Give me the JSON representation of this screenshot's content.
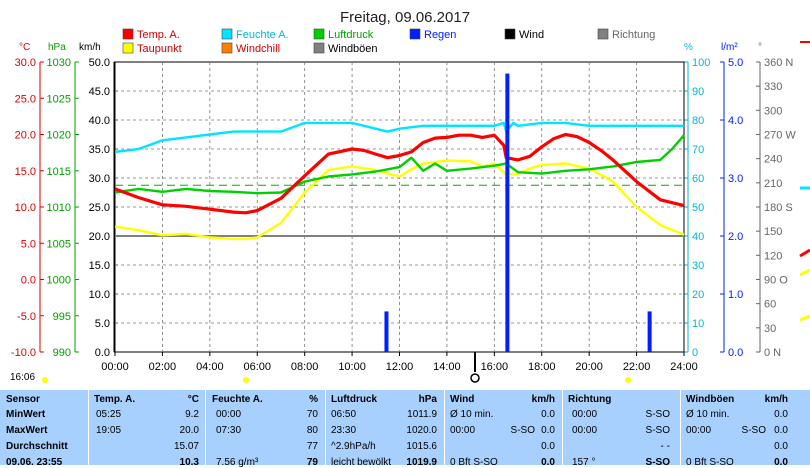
{
  "title": "Freitag, 09.06.2017",
  "axis_units": {
    "temp": "°C",
    "pressure": "hPa",
    "wind": "km/h",
    "humidity": "%",
    "rain": "l/m²",
    "direction": "°"
  },
  "legend": [
    {
      "label": "Temp. A.",
      "color": "#ff0000"
    },
    {
      "label": "Feuchte A.",
      "color": "#00e5ff"
    },
    {
      "label": "Luftdruck",
      "color": "#00d000"
    },
    {
      "label": "Regen",
      "color": "#0020ff"
    },
    {
      "label": "Wind",
      "color": "#000000"
    },
    {
      "label": "Richtung",
      "color": "#808080"
    },
    {
      "label": "Taupunkt",
      "color": "#ffff00"
    },
    {
      "label": "Windchill",
      "color": "#ff8000"
    },
    {
      "label": "Windböen",
      "color": "#808080"
    }
  ],
  "timestamp": "16:06",
  "chart_data": {
    "type": "line",
    "title": "Freitag, 09.06.2017",
    "x_ticks": [
      "00:00",
      "02:00",
      "04:00",
      "06:00",
      "08:00",
      "10:00",
      "12:00",
      "14:00",
      "16:00",
      "18:00",
      "20:00",
      "22:00",
      "24:00"
    ],
    "xlim": [
      0,
      24
    ],
    "y_axes": {
      "temp": {
        "ticks": [
          "30.0",
          "25.0",
          "20.0",
          "15.0",
          "10.0",
          "5.0",
          "0.0",
          "-5.0",
          "-10.0"
        ],
        "ylim": [
          -10,
          30
        ]
      },
      "pressure": {
        "ticks": [
          "1030",
          "1025",
          "1020",
          "1015",
          "1010",
          "1005",
          "1000",
          "995",
          "990"
        ],
        "ylim": [
          990,
          1030
        ]
      },
      "wind": {
        "ticks": [
          "50.0",
          "45.0",
          "40.0",
          "35.0",
          "30.0",
          "25.0",
          "20.0",
          "15.0",
          "10.0",
          "5.0",
          "0.0"
        ],
        "ylim": [
          0,
          50
        ]
      },
      "humidity": {
        "ticks": [
          "100",
          "90",
          "80",
          "70",
          "60",
          "50",
          "40",
          "30",
          "20",
          "10",
          "0"
        ],
        "ylim": [
          0,
          100
        ]
      },
      "rain": {
        "ticks": [
          "5.0",
          "4.0",
          "3.0",
          "2.0",
          "1.0",
          "0.0"
        ],
        "ylim": [
          0,
          5
        ]
      },
      "direction": {
        "ticks": [
          "360 N",
          "330",
          "300",
          "270 W",
          "240",
          "210",
          "180 S",
          "150",
          "120",
          "90 O",
          "60",
          "30",
          "0 N"
        ],
        "ylim": [
          0,
          360
        ]
      }
    },
    "series": [
      {
        "name": "Temp. A.",
        "axis": "temp",
        "color": "#ff0000",
        "x": [
          0,
          1,
          2,
          3,
          4,
          5,
          5.5,
          6,
          7,
          8,
          9,
          10,
          10.5,
          11,
          11.5,
          12,
          12.5,
          13,
          13.5,
          14,
          14.5,
          15,
          15.5,
          16,
          16.4,
          16.5,
          17,
          17.5,
          18,
          18.5,
          19,
          19.5,
          20,
          20.5,
          21,
          22,
          23,
          24
        ],
        "y": [
          12.5,
          11.3,
          10.3,
          10.1,
          9.7,
          9.3,
          9.2,
          9.5,
          11.2,
          14.3,
          17.3,
          18.0,
          17.8,
          17.3,
          16.8,
          17.1,
          17.6,
          18.9,
          19.5,
          19.6,
          19.9,
          19.9,
          19.6,
          19.9,
          18.5,
          16.8,
          16.5,
          17.0,
          18.3,
          19.4,
          20.0,
          19.7,
          18.9,
          17.8,
          16.5,
          13.5,
          11.0,
          10.2
        ]
      },
      {
        "name": "Taupunkt",
        "axis": "temp",
        "color": "#ffff00",
        "x": [
          0,
          1,
          2,
          3,
          4,
          5,
          5.5,
          6,
          7,
          8,
          9,
          10,
          11,
          11.5,
          12,
          12.5,
          13,
          14,
          15,
          15.5,
          16,
          16.5,
          17,
          17.5,
          18,
          19,
          20,
          21,
          22,
          23,
          24
        ],
        "y": [
          7.3,
          6.8,
          6.1,
          6.3,
          5.8,
          5.6,
          5.6,
          5.8,
          7.8,
          12.0,
          15.1,
          15.6,
          15.1,
          14.6,
          14.2,
          15.2,
          16.0,
          16.4,
          16.3,
          15.6,
          16.0,
          14.5,
          14.6,
          15.3,
          15.8,
          16.0,
          15.3,
          13.5,
          10.0,
          7.5,
          6.2
        ]
      },
      {
        "name": "Feuchte A.",
        "axis": "humidity",
        "color": "#00e5ff",
        "x": [
          0,
          1,
          2,
          3,
          4,
          5,
          6,
          7,
          8,
          9,
          10,
          11,
          11.5,
          12,
          13,
          14,
          15,
          16,
          16.4,
          16.5,
          16.8,
          17,
          18,
          19,
          20,
          21,
          22,
          23,
          24
        ],
        "y": [
          69,
          70,
          73,
          74,
          75,
          76,
          76,
          76,
          79,
          79,
          79,
          77,
          76,
          77,
          78,
          78,
          78,
          78,
          79,
          76,
          79,
          78,
          79,
          79,
          78,
          78,
          78,
          78,
          78
        ]
      },
      {
        "name": "Luftdruck",
        "axis": "pressure",
        "color": "#00d000",
        "x": [
          0,
          1,
          2,
          3,
          4,
          5,
          6,
          7,
          8,
          9,
          10,
          11,
          12,
          12.5,
          13,
          13.5,
          14,
          15,
          16,
          16.5,
          17,
          18,
          19,
          20,
          21,
          22,
          23,
          23.5,
          24
        ],
        "y": [
          1012.0,
          1012.5,
          1012.1,
          1012.5,
          1012.2,
          1012.1,
          1011.9,
          1012.0,
          1013.5,
          1014.2,
          1014.5,
          1014.9,
          1015.5,
          1016.8,
          1015.0,
          1016.0,
          1015.0,
          1015.3,
          1015.7,
          1016.0,
          1014.8,
          1014.6,
          1015.0,
          1015.2,
          1015.6,
          1016.2,
          1016.5,
          1018.0,
          1019.9
        ]
      },
      {
        "name": "Regen",
        "axis": "rain",
        "color": "#0020ff",
        "type": "bar",
        "x": [
          11.45,
          16.55,
          22.55
        ],
        "y": [
          0.7,
          4.8,
          0.7
        ]
      }
    ]
  },
  "stats": {
    "headers": {
      "sensor": "Sensor",
      "temp": "Temp. A.",
      "temp_unit": "°C",
      "hum": "Feuchte A.",
      "hum_unit": "%",
      "press": "Luftdruck",
      "press_unit": "hPa",
      "wind": "Wind",
      "wind_unit": "km/h",
      "dir": "Richtung",
      "gust": "Windböen",
      "gust_unit": "km/h"
    },
    "rows": [
      {
        "label": "MinWert",
        "temp_time": "05:25",
        "temp_val": "9.2",
        "hum_time": "00:00",
        "hum_val": "70",
        "press_time": "06:50",
        "press_val": "1011.9",
        "wind_time": "Ø 10 min.",
        "wind_val": "0.0",
        "dir_time": "00:00",
        "dir_val": "S-SO",
        "gust_time": "Ø 10 min.",
        "gust_val": "0.0"
      },
      {
        "label": "MaxWert",
        "temp_time": "19:05",
        "temp_val": "20.0",
        "hum_time": "07:30",
        "hum_val": "80",
        "press_time": "23:30",
        "press_val": "1020.0",
        "wind_time": "00:00",
        "wind_dir": "S-SO",
        "wind_val": "0.0",
        "dir_time": "00:00",
        "dir_val": "S-SO",
        "gust_time": "00:00",
        "gust_dir": "S-SO",
        "gust_val": "0.0"
      },
      {
        "label": "Durchschnitt",
        "temp_time": "",
        "temp_val": "15.07",
        "hum_time": "",
        "hum_val": "77",
        "press_time": "^2.9hPa/h",
        "press_val": "1015.6",
        "wind_time": "",
        "wind_val": "0.0",
        "dir_time": "",
        "dir_val": "- -",
        "gust_time": "",
        "gust_val": "0.0"
      },
      {
        "label": "09.06. 23:55",
        "temp_time": "",
        "temp_val": "10.3",
        "hum_time": "7.56 g/m³",
        "hum_val": "79",
        "press_time": "leicht bewölkt",
        "press_val": "1019.9",
        "wind_time": "0 Bft S-SO",
        "wind_val": "0.0",
        "dir_time": "157 °",
        "dir_val": "S-SO",
        "gust_time": "0 Bft S-SO",
        "gust_val": "0.0"
      }
    ]
  }
}
